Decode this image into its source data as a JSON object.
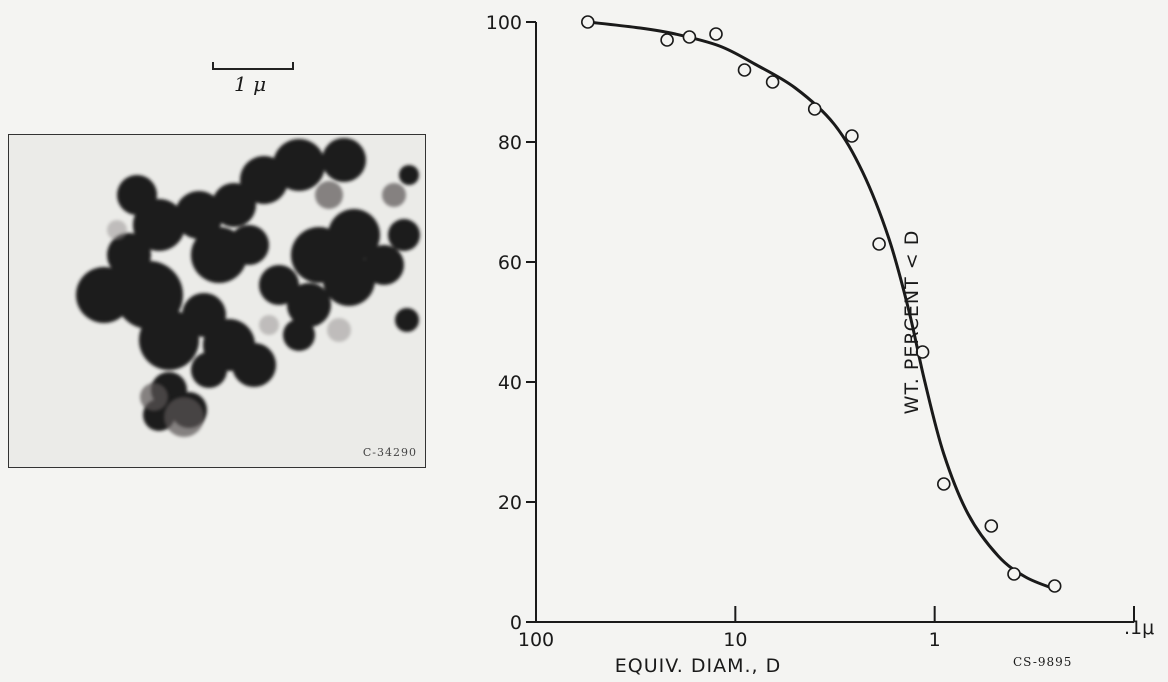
{
  "scale_bar": {
    "label": "1 μ"
  },
  "micrograph": {
    "id_label": "C-34290"
  },
  "chart_data": {
    "type": "line",
    "x_scale": "log",
    "x_reversed": true,
    "xlabel": "EQUIV. DIAM., D",
    "ylabel": "WT. PERCENT < D",
    "xlim": [
      100,
      0.1
    ],
    "ylim": [
      0,
      100
    ],
    "x_ticks": [
      {
        "value": 100,
        "label": "100"
      },
      {
        "value": 10,
        "label": "10"
      },
      {
        "value": 1,
        "label": "1"
      },
      {
        "value": 0.1,
        "label": ".1μ"
      }
    ],
    "y_ticks": [
      {
        "value": 0,
        "label": "0"
      },
      {
        "value": 20,
        "label": "20"
      },
      {
        "value": 40,
        "label": "40"
      },
      {
        "value": 60,
        "label": "60"
      },
      {
        "value": 80,
        "label": "80"
      },
      {
        "value": 100,
        "label": "100"
      }
    ],
    "grid": false,
    "points": [
      {
        "x": 55,
        "y": 100
      },
      {
        "x": 22,
        "y": 97
      },
      {
        "x": 17,
        "y": 97.5
      },
      {
        "x": 12.5,
        "y": 98
      },
      {
        "x": 9,
        "y": 92
      },
      {
        "x": 6.5,
        "y": 90
      },
      {
        "x": 4,
        "y": 85.5
      },
      {
        "x": 2.6,
        "y": 81
      },
      {
        "x": 1.9,
        "y": 63
      },
      {
        "x": 1.15,
        "y": 45
      },
      {
        "x": 0.9,
        "y": 23
      },
      {
        "x": 0.52,
        "y": 16
      },
      {
        "x": 0.4,
        "y": 8
      },
      {
        "x": 0.25,
        "y": 6
      }
    ],
    "curve": [
      {
        "x": 55,
        "y": 100
      },
      {
        "x": 30,
        "y": 99
      },
      {
        "x": 20,
        "y": 98
      },
      {
        "x": 12,
        "y": 96
      },
      {
        "x": 8,
        "y": 93
      },
      {
        "x": 5,
        "y": 89
      },
      {
        "x": 3.2,
        "y": 83
      },
      {
        "x": 2.3,
        "y": 75
      },
      {
        "x": 1.7,
        "y": 64
      },
      {
        "x": 1.35,
        "y": 52
      },
      {
        "x": 1.12,
        "y": 40
      },
      {
        "x": 0.9,
        "y": 28
      },
      {
        "x": 0.68,
        "y": 18
      },
      {
        "x": 0.48,
        "y": 11
      },
      {
        "x": 0.35,
        "y": 7.5
      },
      {
        "x": 0.25,
        "y": 5.5
      }
    ],
    "caption": "CS-9895"
  }
}
